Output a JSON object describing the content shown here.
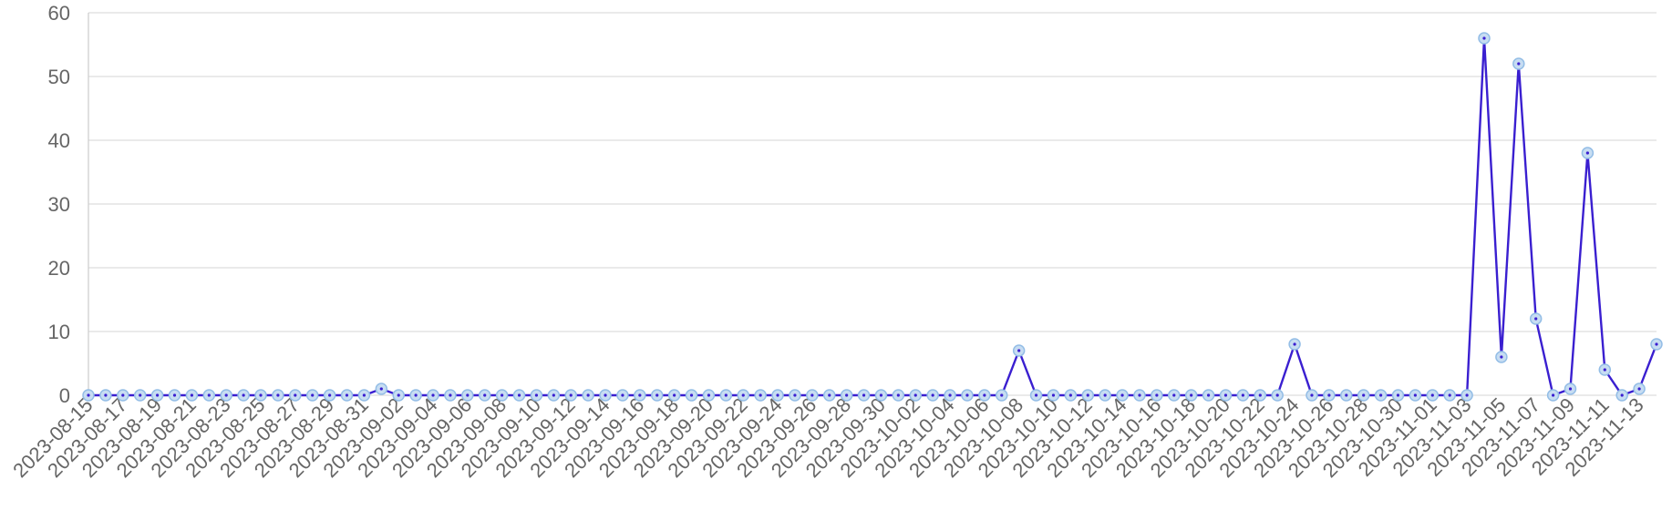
{
  "chart_data": {
    "type": "line",
    "title": "",
    "xlabel": "",
    "ylabel": "",
    "ylim": [
      0,
      60
    ],
    "y_ticks": [
      0,
      10,
      20,
      30,
      40,
      50,
      60
    ],
    "grid": true,
    "legend": "none",
    "x_tick_every": 2,
    "colors": {
      "line": "#3a1fd0",
      "point_fill": "#c7ddf2",
      "point_stroke": "#93bde6",
      "grid": "#dddddd",
      "tick_text": "#666666"
    },
    "x": [
      "2023-08-15",
      "2023-08-16",
      "2023-08-17",
      "2023-08-18",
      "2023-08-19",
      "2023-08-20",
      "2023-08-21",
      "2023-08-22",
      "2023-08-23",
      "2023-08-24",
      "2023-08-25",
      "2023-08-26",
      "2023-08-27",
      "2023-08-28",
      "2023-08-29",
      "2023-08-30",
      "2023-08-31",
      "2023-09-01",
      "2023-09-02",
      "2023-09-03",
      "2023-09-04",
      "2023-09-05",
      "2023-09-06",
      "2023-09-07",
      "2023-09-08",
      "2023-09-09",
      "2023-09-10",
      "2023-09-11",
      "2023-09-12",
      "2023-09-13",
      "2023-09-14",
      "2023-09-15",
      "2023-09-16",
      "2023-09-17",
      "2023-09-18",
      "2023-09-19",
      "2023-09-20",
      "2023-09-21",
      "2023-09-22",
      "2023-09-23",
      "2023-09-24",
      "2023-09-25",
      "2023-09-26",
      "2023-09-27",
      "2023-09-28",
      "2023-09-29",
      "2023-09-30",
      "2023-10-01",
      "2023-10-02",
      "2023-10-03",
      "2023-10-04",
      "2023-10-05",
      "2023-10-06",
      "2023-10-07",
      "2023-10-08",
      "2023-10-09",
      "2023-10-10",
      "2023-10-11",
      "2023-10-12",
      "2023-10-13",
      "2023-10-14",
      "2023-10-15",
      "2023-10-16",
      "2023-10-17",
      "2023-10-18",
      "2023-10-19",
      "2023-10-20",
      "2023-10-21",
      "2023-10-22",
      "2023-10-23",
      "2023-10-24",
      "2023-10-25",
      "2023-10-26",
      "2023-10-27",
      "2023-10-28",
      "2023-10-29",
      "2023-10-30",
      "2023-10-31",
      "2023-11-01",
      "2023-11-02",
      "2023-11-03",
      "2023-11-04",
      "2023-11-05",
      "2023-11-06",
      "2023-11-07",
      "2023-11-08",
      "2023-11-09",
      "2023-11-10",
      "2023-11-11",
      "2023-11-12",
      "2023-11-13",
      "2023-11-14"
    ],
    "series": [
      {
        "values": [
          0,
          0,
          0,
          0,
          0,
          0,
          0,
          0,
          0,
          0,
          0,
          0,
          0,
          0,
          0,
          0,
          0,
          1,
          0,
          0,
          0,
          0,
          0,
          0,
          0,
          0,
          0,
          0,
          0,
          0,
          0,
          0,
          0,
          0,
          0,
          0,
          0,
          0,
          0,
          0,
          0,
          0,
          0,
          0,
          0,
          0,
          0,
          0,
          0,
          0,
          0,
          0,
          0,
          0,
          7,
          0,
          0,
          0,
          0,
          0,
          0,
          0,
          0,
          0,
          0,
          0,
          0,
          0,
          0,
          0,
          8,
          0,
          0,
          0,
          0,
          0,
          0,
          0,
          0,
          0,
          0,
          56,
          6,
          52,
          12,
          0,
          1,
          38,
          4,
          0,
          1,
          8
        ]
      }
    ]
  }
}
